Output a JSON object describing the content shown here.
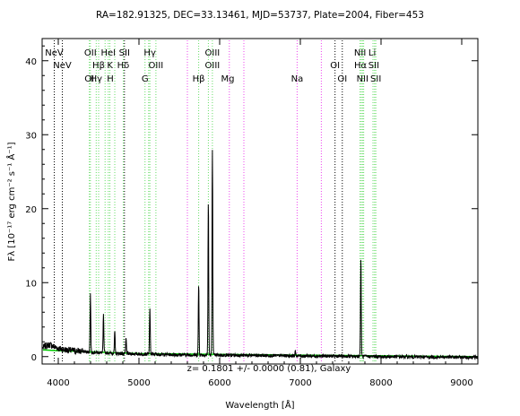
{
  "chart_data": {
    "type": "line",
    "title": "RA=182.91325, DEC=33.13461, MJD=53737, Plate=2004, Fiber=453",
    "xlabel": "Wavelength [Å]",
    "ylabel": "Fλ [10⁻¹⁷ erg cm⁻² s⁻¹ Å⁻¹]",
    "xlim": [
      3800,
      9200
    ],
    "ylim": [
      -1,
      43
    ],
    "xticks": [
      4000,
      5000,
      6000,
      7000,
      8000,
      9000
    ],
    "yticks": [
      0,
      10,
      20,
      30,
      40
    ],
    "annotation": "z=  0.1801 +/- 0.0000 (0.81), Galaxy",
    "colors": {
      "spectrum": "#000000",
      "model": "#00cc00",
      "emission_lines": "#66dd66",
      "absorption_lines": "#ee44ee",
      "sky_lines": "#000000"
    },
    "series": [
      {
        "name": "spectrum",
        "baseline": [
          [
            3810,
            1.2
          ],
          [
            3850,
            1.5
          ],
          [
            3900,
            1.6
          ],
          [
            3950,
            1.3
          ],
          [
            4000,
            1.1
          ],
          [
            4100,
            0.9
          ],
          [
            4200,
            0.8
          ],
          [
            4300,
            0.7
          ],
          [
            4400,
            0.6
          ],
          [
            4600,
            0.5
          ],
          [
            4800,
            0.4
          ],
          [
            5000,
            0.35
          ],
          [
            5500,
            0.25
          ],
          [
            6000,
            0.2
          ],
          [
            7000,
            0.1
          ],
          [
            8000,
            0.0
          ],
          [
            9200,
            -0.1
          ]
        ],
        "peaks": [
          [
            4398,
            8.5
          ],
          [
            4560,
            5.6
          ],
          [
            4700,
            3.3
          ],
          [
            4840,
            2.4
          ],
          [
            5135,
            6.7
          ],
          [
            5740,
            9.8
          ],
          [
            5860,
            20.9
          ],
          [
            5910,
            28.0
          ],
          [
            6939,
            0.7
          ],
          [
            7750,
            13.2
          ]
        ]
      },
      {
        "name": "model",
        "points": [
          [
            3810,
            0.9
          ],
          [
            4000,
            0.8
          ],
          [
            4500,
            0.6
          ],
          [
            5000,
            0.4
          ],
          [
            6000,
            0.3
          ],
          [
            7000,
            0.2
          ],
          [
            8000,
            0.1
          ],
          [
            9200,
            0.0
          ]
        ]
      }
    ],
    "line_markers": [
      {
        "label": "NeV",
        "x": 3950,
        "row": 0,
        "kind": "sky"
      },
      {
        "label": "NeV",
        "x": 4050,
        "row": 1,
        "kind": "sky"
      },
      {
        "label": "OII",
        "x": 4398,
        "row": 0,
        "kind": "emission"
      },
      {
        "label": "OI",
        "x": 4385,
        "row": 2,
        "kind": "emission"
      },
      {
        "label": "Hβ",
        "x": 4500,
        "row": 1,
        "kind": "emission"
      },
      {
        "label": "Hγ",
        "x": 4470,
        "row": 2,
        "kind": "emission"
      },
      {
        "label": "HeI",
        "x": 4620,
        "row": 0,
        "kind": "emission"
      },
      {
        "label": "K",
        "x": 4640,
        "row": 1,
        "kind": "emission"
      },
      {
        "label": "H",
        "x": 4645,
        "row": 2,
        "kind": "emission"
      },
      {
        "label": "SII",
        "x": 4820,
        "row": 0,
        "kind": "sky"
      },
      {
        "label": "Hδ",
        "x": 4805,
        "row": 1,
        "kind": "emission"
      },
      {
        "label": "Hγ",
        "x": 5135,
        "row": 0,
        "kind": "emission"
      },
      {
        "label": "OIII",
        "x": 5210,
        "row": 1,
        "kind": "emission"
      },
      {
        "label": "G",
        "x": 5075,
        "row": 2,
        "kind": "emission"
      },
      {
        "label": "OIII",
        "x": 5910,
        "row": 0,
        "kind": "emission"
      },
      {
        "label": "OIII",
        "x": 5910,
        "row": 1,
        "kind": "emission"
      },
      {
        "label": "Hβ",
        "x": 5740,
        "row": 2,
        "kind": "emission"
      },
      {
        "label": "Mg",
        "x": 6100,
        "row": 2,
        "kind": "absorption"
      },
      {
        "label": "Na",
        "x": 6960,
        "row": 2,
        "kind": "absorption"
      },
      {
        "label": "OI",
        "x": 7430,
        "row": 1,
        "kind": "sky"
      },
      {
        "label": "OI",
        "x": 7520,
        "row": 2,
        "kind": "sky"
      },
      {
        "label": "NII",
        "x": 7740,
        "row": 0,
        "kind": "emission"
      },
      {
        "label": "Hα",
        "x": 7745,
        "row": 1,
        "kind": "emission"
      },
      {
        "label": "NII",
        "x": 7770,
        "row": 2,
        "kind": "emission"
      },
      {
        "label": "Li",
        "x": 7890,
        "row": 0,
        "kind": "emission"
      },
      {
        "label": "SII",
        "x": 7910,
        "row": 1,
        "kind": "emission"
      },
      {
        "label": "SII",
        "x": 7935,
        "row": 2,
        "kind": "emission"
      }
    ],
    "vertical_lines": [
      {
        "x": 3950,
        "kind": "sky"
      },
      {
        "x": 4050,
        "kind": "sky"
      },
      {
        "x": 4385,
        "kind": "emission"
      },
      {
        "x": 4398,
        "kind": "emission"
      },
      {
        "x": 4470,
        "kind": "emission"
      },
      {
        "x": 4500,
        "kind": "emission"
      },
      {
        "x": 4580,
        "kind": "emission"
      },
      {
        "x": 4620,
        "kind": "emission"
      },
      {
        "x": 4640,
        "kind": "emission"
      },
      {
        "x": 4700,
        "kind": "emission"
      },
      {
        "x": 4805,
        "kind": "emission"
      },
      {
        "x": 4820,
        "kind": "sky"
      },
      {
        "x": 5075,
        "kind": "emission"
      },
      {
        "x": 5120,
        "kind": "emission"
      },
      {
        "x": 5135,
        "kind": "emission"
      },
      {
        "x": 5210,
        "kind": "emission"
      },
      {
        "x": 5600,
        "kind": "absorption"
      },
      {
        "x": 5740,
        "kind": "emission"
      },
      {
        "x": 5860,
        "kind": "emission"
      },
      {
        "x": 5910,
        "kind": "emission"
      },
      {
        "x": 6120,
        "kind": "absorption"
      },
      {
        "x": 6300,
        "kind": "absorption"
      },
      {
        "x": 6960,
        "kind": "absorption"
      },
      {
        "x": 7260,
        "kind": "absorption"
      },
      {
        "x": 7430,
        "kind": "sky"
      },
      {
        "x": 7520,
        "kind": "sky"
      },
      {
        "x": 7740,
        "kind": "emission"
      },
      {
        "x": 7755,
        "kind": "emission"
      },
      {
        "x": 7770,
        "kind": "emission"
      },
      {
        "x": 7785,
        "kind": "emission"
      },
      {
        "x": 7900,
        "kind": "emission"
      },
      {
        "x": 7920,
        "kind": "emission"
      },
      {
        "x": 7935,
        "kind": "emission"
      }
    ]
  }
}
